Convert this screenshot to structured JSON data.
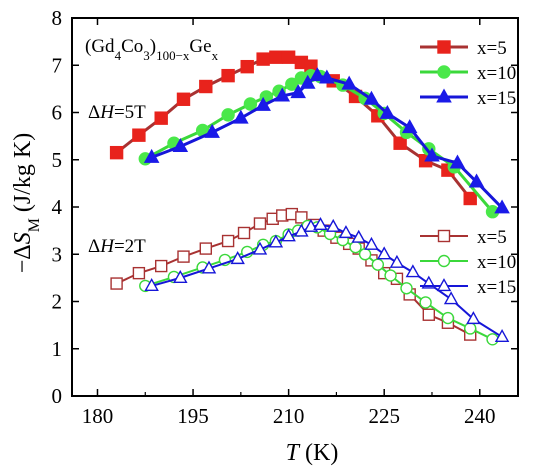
{
  "chart_data": {
    "type": "line",
    "title": "",
    "xlabel": {
      "italic": "T",
      "rest": " (K)"
    },
    "ylabel": {
      "prefix": "−Δ",
      "italic": "S",
      "sub": "M",
      "rest": " (J/kg K)"
    },
    "xlim": [
      176,
      246
    ],
    "ylim": [
      0,
      8
    ],
    "xticks": [
      180,
      195,
      210,
      225,
      240
    ],
    "yticks": [
      0,
      1,
      2,
      3,
      4,
      5,
      6,
      7,
      8
    ],
    "annotations": {
      "compound": {
        "base": "(Gd",
        "s1": "4",
        "mid": "Co",
        "s2": "3",
        "paren": ")",
        "s3": "100−x",
        "tail": "Ge",
        "s4": "x"
      },
      "field_high": {
        "prefix": "Δ",
        "italic": "H",
        "rest": "=5T"
      },
      "field_low": {
        "prefix": "Δ",
        "italic": "H",
        "rest": "=2T"
      }
    },
    "legends": [
      {
        "position": "top-right",
        "entries": [
          "x=5",
          "x=10",
          "x=15"
        ]
      },
      {
        "position": "middle-right",
        "entries": [
          "x=5",
          "x=10",
          "x=15"
        ]
      }
    ],
    "series": [
      {
        "name": "x=5",
        "field": "5T",
        "marker": "square",
        "filled": true,
        "color": "#a83232",
        "markerColor": "#e8231c",
        "x": [
          183,
          186.5,
          190,
          193.5,
          197,
          200.5,
          203.5,
          206,
          208,
          210,
          212,
          213.5,
          217,
          220.5,
          224,
          227.5,
          231.5,
          235,
          238.5
        ],
        "y": [
          5.15,
          5.52,
          5.88,
          6.28,
          6.55,
          6.78,
          6.97,
          7.13,
          7.17,
          7.17,
          7.06,
          6.98,
          6.67,
          6.34,
          5.93,
          5.35,
          4.98,
          4.78,
          4.18
        ]
      },
      {
        "name": "x=10",
        "field": "5T",
        "marker": "circle",
        "filled": true,
        "color": "#3bd83b",
        "markerColor": "#4ae84a",
        "x": [
          187.5,
          192,
          196.5,
          200.5,
          204,
          206.5,
          208.5,
          210.5,
          212,
          213.5,
          215,
          218.5,
          222,
          225,
          228.5,
          232,
          236,
          242
        ],
        "y": [
          5.02,
          5.35,
          5.62,
          5.95,
          6.18,
          6.33,
          6.45,
          6.6,
          6.73,
          6.78,
          6.76,
          6.58,
          6.3,
          5.98,
          5.58,
          5.23,
          4.85,
          3.9
        ]
      },
      {
        "name": "x=15",
        "field": "5T",
        "marker": "triangle-up",
        "filled": true,
        "color": "#1616d8",
        "markerColor": "#1a1ae8",
        "x": [
          188.5,
          193,
          198,
          202.5,
          206,
          209,
          211.5,
          213,
          214.5,
          216,
          219.5,
          223,
          225.5,
          229,
          232.5,
          236.5,
          239.5,
          243.5
        ],
        "y": [
          5.05,
          5.28,
          5.58,
          5.88,
          6.15,
          6.35,
          6.42,
          6.62,
          6.78,
          6.73,
          6.6,
          6.28,
          5.98,
          5.68,
          5.08,
          4.93,
          4.53,
          3.98
        ]
      },
      {
        "name": "x=5",
        "field": "2T",
        "marker": "square",
        "filled": false,
        "color": "#a83232",
        "markerColor": "#a83232",
        "x": [
          183,
          186.5,
          190,
          193.5,
          197,
          200.5,
          203,
          205.5,
          207.5,
          209,
          210.5,
          212,
          214,
          215.5,
          217.5,
          219.5,
          221,
          223,
          225,
          227,
          229,
          232,
          235,
          238.5
        ],
        "y": [
          2.38,
          2.6,
          2.75,
          2.95,
          3.12,
          3.28,
          3.45,
          3.65,
          3.75,
          3.82,
          3.85,
          3.78,
          3.62,
          3.5,
          3.35,
          3.22,
          3.12,
          2.87,
          2.6,
          2.48,
          2.15,
          1.72,
          1.55,
          1.3
        ]
      },
      {
        "name": "x=10",
        "field": "2T",
        "marker": "circle",
        "filled": false,
        "color": "#3bd83b",
        "markerColor": "#3bd83b",
        "x": [
          187.5,
          192,
          196.5,
          200,
          203.5,
          206,
          208,
          210,
          211.5,
          213,
          214.5,
          216.5,
          218.5,
          220.5,
          222,
          224,
          226,
          228.5,
          231.5,
          235,
          238.5,
          242
        ],
        "y": [
          2.33,
          2.52,
          2.72,
          2.88,
          3.05,
          3.2,
          3.28,
          3.42,
          3.5,
          3.6,
          3.57,
          3.43,
          3.3,
          3.15,
          3.0,
          2.78,
          2.55,
          2.28,
          1.98,
          1.65,
          1.43,
          1.2
        ]
      },
      {
        "name": "x=15",
        "field": "2T",
        "marker": "triangle-up",
        "filled": false,
        "color": "#1616d8",
        "markerColor": "#1616d8",
        "x": [
          188.5,
          193,
          197.5,
          202,
          205.5,
          208,
          210,
          212,
          213.5,
          215,
          217,
          219,
          221,
          223,
          225,
          227,
          229.5,
          232,
          235.5,
          239,
          243.5
        ],
        "y": [
          2.33,
          2.5,
          2.7,
          2.9,
          3.1,
          3.25,
          3.38,
          3.48,
          3.58,
          3.62,
          3.58,
          3.45,
          3.35,
          3.2,
          3.0,
          2.82,
          2.62,
          2.38,
          2.05,
          1.63,
          1.25
        ]
      }
    ]
  }
}
